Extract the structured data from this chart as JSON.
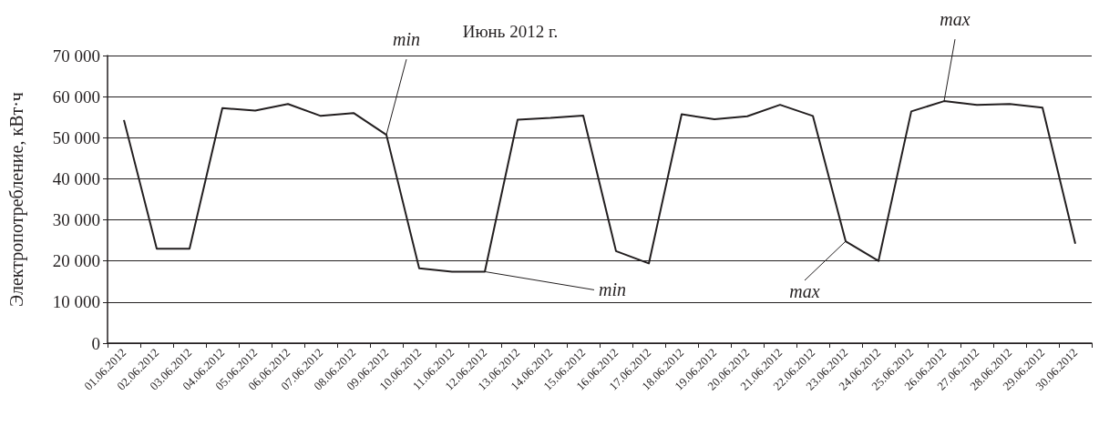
{
  "chart_data": {
    "type": "line",
    "title": "Июнь 2012 г.",
    "ylabel": "Электропотребление, кВт·ч",
    "categories": [
      "01.06.2012",
      "02.06.2012",
      "03.06.2012",
      "04.06.2012",
      "05.06.2012",
      "06.06.2012",
      "07.06.2012",
      "08.06.2012",
      "09.06.2012",
      "10.06.2012",
      "11.06.2012",
      "12.06.2012",
      "13.06.2012",
      "14.06.2012",
      "15.06.2012",
      "16.06.2012",
      "17.06.2012",
      "18.06.2012",
      "19.06.2012",
      "20.06.2012",
      "21.06.2012",
      "22.06.2012",
      "23.06.2012",
      "24.06.2012",
      "25.06.2012",
      "26.06.2012",
      "27.06.2012",
      "28.06.2012",
      "29.06.2012",
      "30.06.2012"
    ],
    "series": [
      {
        "color": "#231f20",
        "values": [
          54300,
          23000,
          23000,
          57200,
          56600,
          58200,
          55300,
          56000,
          50700,
          18200,
          17400,
          17400,
          54400,
          54800,
          55400,
          22400,
          19400,
          55700,
          54500,
          55200,
          58000,
          55300,
          24800,
          20000,
          56400,
          58900,
          58000,
          58200,
          57300,
          24200
        ]
      }
    ],
    "ylim": [
      0,
      70000
    ],
    "yticks": [
      {
        "value": 0,
        "label": "0"
      },
      {
        "value": 10000,
        "label": "10 000"
      },
      {
        "value": 20000,
        "label": "20 000"
      },
      {
        "value": 30000,
        "label": "30 000"
      },
      {
        "value": 40000,
        "label": "40 000"
      },
      {
        "value": 50000,
        "label": "50 000"
      },
      {
        "value": 60000,
        "label": "60 000"
      },
      {
        "value": 70000,
        "label": "70 000"
      }
    ],
    "grid": "y",
    "marker": "none",
    "line_style": "solid",
    "annotations": [
      {
        "text": "min",
        "x": "09.06.2012",
        "y": 50700
      },
      {
        "text": "min",
        "x": "12.06.2012",
        "y": 17400
      },
      {
        "text": "max",
        "x": "23.06.2012",
        "y": 24800
      },
      {
        "text": "max",
        "x": "26.06.2012",
        "y": 58900
      }
    ]
  }
}
